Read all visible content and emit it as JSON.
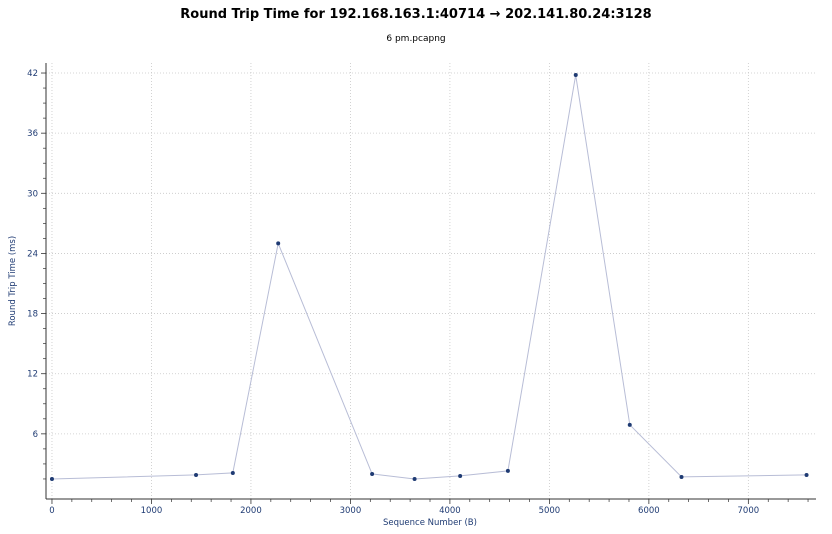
{
  "chart_data": {
    "type": "line",
    "title": "Round Trip Time for 192.168.163.1:40714 → 202.141.80.24:3128",
    "subtitle": "6 pm.pcapng",
    "xlabel": "Sequence Number (B)",
    "ylabel": "Round Trip Time (ms)",
    "xlim": [
      -60,
      7680
    ],
    "ylim": [
      -0.5,
      43
    ],
    "x_ticks": [
      0,
      1000,
      2000,
      3000,
      4000,
      5000,
      6000,
      7000
    ],
    "y_ticks": [
      6,
      12,
      18,
      24,
      30,
      36,
      42
    ],
    "grid": true,
    "legend": "none",
    "series": [
      {
        "color": "#b8bdd6",
        "marker_color": "#1f3b73",
        "x": [
          0,
          1448,
          1818,
          2274,
          3218,
          3645,
          4103,
          4583,
          5265,
          5808,
          6328,
          7585
        ],
        "y": [
          1.5,
          1.9,
          2.1,
          25.0,
          2.0,
          1.5,
          1.8,
          2.3,
          41.8,
          6.9,
          1.7,
          1.9
        ]
      }
    ]
  }
}
